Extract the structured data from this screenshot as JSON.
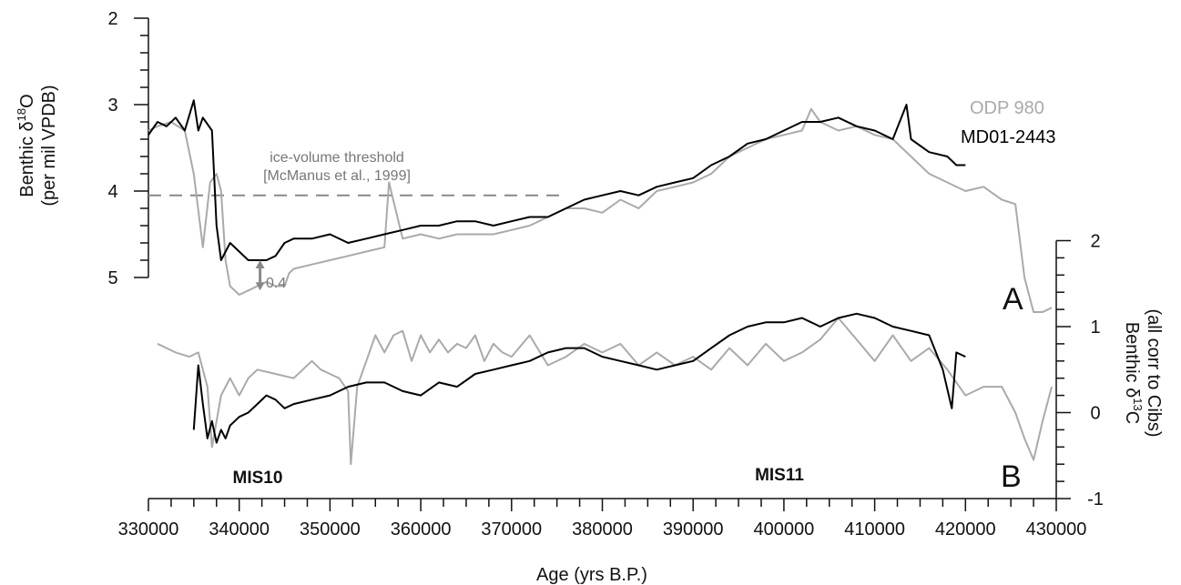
{
  "chart_data": {
    "type": "line",
    "x_axis": {
      "label": "Age (yrs B.P.)",
      "range": [
        330000,
        430000
      ],
      "ticks": [
        330000,
        340000,
        350000,
        360000,
        370000,
        380000,
        390000,
        400000,
        410000,
        420000,
        430000
      ]
    },
    "panels": [
      {
        "id": "A",
        "letter": "A",
        "y_axis": {
          "label_main": "Benthic δ",
          "label_sup": "18",
          "label_tail": "O",
          "label_line2": "(per mil VPDB)",
          "range": [
            2,
            5
          ],
          "inverted": true,
          "ticks": [
            2,
            3,
            4,
            5
          ],
          "side": "left"
        },
        "threshold": {
          "value": 4.05,
          "x_range": [
            330000,
            376000
          ],
          "label_line1": "ice-volume threshold",
          "label_line2": "[McManus et al., 1999]"
        },
        "annotation": {
          "text": "0.4",
          "x": 342300,
          "y_top": 4.8,
          "y_bottom": 5.15
        },
        "series": [
          {
            "name": "ODP 980",
            "color": "#aaaaaa",
            "x": [
              330000,
              331000,
              332500,
              334000,
              335000,
              336000,
              336800,
              337500,
              338000,
              338500,
              339000,
              340000,
              341000,
              342000,
              343000,
              344000,
              345000,
              345500,
              346000,
              348000,
              350000,
              352000,
              354000,
              356000,
              356500,
              358000,
              360000,
              362000,
              364000,
              366000,
              368000,
              370000,
              372000,
              374000,
              376000,
              378000,
              380000,
              382000,
              384000,
              386000,
              388000,
              390000,
              392000,
              394000,
              396000,
              398000,
              400000,
              402000,
              403000,
              404000,
              406000,
              408000,
              410000,
              412000,
              414000,
              416000,
              418000,
              420000,
              422000,
              424000,
              425500,
              426500,
              427500,
              428500,
              429500
            ],
            "y": [
              3.3,
              3.25,
              3.2,
              3.3,
              3.8,
              4.65,
              3.9,
              3.8,
              4.0,
              4.8,
              5.1,
              5.2,
              5.15,
              5.1,
              5.05,
              5.1,
              5.1,
              4.95,
              4.9,
              4.85,
              4.8,
              4.75,
              4.7,
              4.65,
              3.9,
              4.55,
              4.5,
              4.55,
              4.5,
              4.5,
              4.5,
              4.45,
              4.4,
              4.3,
              4.2,
              4.2,
              4.25,
              4.1,
              4.2,
              4.0,
              3.95,
              3.9,
              3.8,
              3.6,
              3.5,
              3.4,
              3.35,
              3.3,
              3.05,
              3.2,
              3.3,
              3.25,
              3.35,
              3.4,
              3.6,
              3.8,
              3.9,
              4.0,
              3.95,
              4.1,
              4.15,
              5.0,
              5.4,
              5.4,
              5.35
            ]
          },
          {
            "name": "MD01-2443",
            "color": "#000000",
            "x": [
              330000,
              331000,
              332000,
              333000,
              334000,
              335000,
              335500,
              336000,
              337000,
              337500,
              338000,
              339000,
              340000,
              341000,
              342000,
              343000,
              344000,
              345000,
              346000,
              348000,
              350000,
              352000,
              354000,
              356000,
              358000,
              360000,
              362000,
              364000,
              366000,
              368000,
              370000,
              372000,
              374000,
              376000,
              378000,
              380000,
              382000,
              384000,
              386000,
              388000,
              390000,
              392000,
              394000,
              396000,
              398000,
              400000,
              402000,
              404000,
              406000,
              408000,
              410000,
              412000,
              413500,
              414000,
              416000,
              418000,
              419000,
              420000
            ],
            "y": [
              3.35,
              3.2,
              3.25,
              3.15,
              3.3,
              2.95,
              3.3,
              3.15,
              3.3,
              4.4,
              4.8,
              4.6,
              4.7,
              4.8,
              4.8,
              4.8,
              4.75,
              4.6,
              4.55,
              4.55,
              4.5,
              4.6,
              4.55,
              4.5,
              4.45,
              4.4,
              4.4,
              4.35,
              4.35,
              4.4,
              4.35,
              4.3,
              4.3,
              4.2,
              4.1,
              4.05,
              4.0,
              4.05,
              3.95,
              3.9,
              3.85,
              3.7,
              3.6,
              3.45,
              3.4,
              3.3,
              3.2,
              3.2,
              3.15,
              3.25,
              3.3,
              3.4,
              3.0,
              3.4,
              3.55,
              3.6,
              3.7,
              3.7
            ]
          }
        ]
      },
      {
        "id": "B",
        "letter": "B",
        "y_axis": {
          "label_main": "Benthic δ",
          "label_sup": "13",
          "label_tail": "C",
          "label_line2": "(all corr to Cibs)",
          "range": [
            -1,
            2
          ],
          "inverted": false,
          "ticks": [
            -1,
            0,
            1,
            2
          ],
          "side": "right"
        },
        "stage_labels": [
          {
            "text": "MIS10",
            "x": 343500
          },
          {
            "text": "MIS11",
            "x": 399000
          }
        ],
        "series": [
          {
            "name": "ODP 980",
            "color": "#aaaaaa",
            "x": [
              331000,
              333000,
              334500,
              335500,
              336500,
              337000,
              338000,
              339000,
              340000,
              341000,
              342000,
              344000,
              346000,
              348000,
              349000,
              350000,
              351000,
              352000,
              352300,
              353000,
              354000,
              355000,
              356000,
              357000,
              358000,
              359000,
              360000,
              361000,
              362000,
              363000,
              364000,
              365000,
              366000,
              367000,
              368000,
              369000,
              370000,
              372000,
              374000,
              376000,
              378000,
              380000,
              382000,
              384000,
              386000,
              388000,
              390000,
              392000,
              394000,
              396000,
              398000,
              400000,
              402000,
              404000,
              406000,
              408000,
              410000,
              412000,
              414000,
              416000,
              418000,
              420000,
              422000,
              424000,
              425500,
              426500,
              427500,
              428500,
              429500
            ],
            "y": [
              0.8,
              0.7,
              0.65,
              0.7,
              0.3,
              -0.4,
              0.2,
              0.4,
              0.2,
              0.4,
              0.5,
              0.45,
              0.4,
              0.6,
              0.5,
              0.45,
              0.4,
              0.25,
              -0.6,
              0.3,
              0.6,
              0.9,
              0.7,
              0.9,
              0.95,
              0.6,
              0.9,
              0.7,
              0.85,
              0.7,
              0.8,
              0.75,
              0.9,
              0.6,
              0.8,
              0.7,
              0.65,
              0.9,
              0.55,
              0.65,
              0.8,
              0.7,
              0.8,
              0.55,
              0.7,
              0.55,
              0.65,
              0.5,
              0.75,
              0.55,
              0.8,
              0.6,
              0.7,
              0.85,
              1.1,
              0.85,
              0.6,
              0.9,
              0.6,
              0.75,
              0.5,
              0.2,
              0.3,
              0.3,
              0.0,
              -0.3,
              -0.55,
              -0.1,
              0.3
            ]
          },
          {
            "name": "MD01-2443",
            "color": "#000000",
            "x": [
              335000,
              335500,
              336000,
              336500,
              337000,
              337500,
              338000,
              338500,
              339000,
              340000,
              341000,
              342000,
              343000,
              344000,
              345000,
              346000,
              348000,
              350000,
              352000,
              354000,
              356000,
              358000,
              360000,
              362000,
              364000,
              366000,
              368000,
              370000,
              372000,
              374000,
              376000,
              378000,
              380000,
              382000,
              384000,
              386000,
              388000,
              390000,
              392000,
              394000,
              396000,
              398000,
              400000,
              402000,
              404000,
              406000,
              408000,
              410000,
              412000,
              414000,
              416000,
              417500,
              418500,
              419000,
              420000
            ],
            "y": [
              -0.2,
              0.55,
              0.1,
              -0.3,
              -0.1,
              -0.35,
              -0.2,
              -0.3,
              -0.15,
              -0.05,
              0.0,
              0.1,
              0.2,
              0.15,
              0.05,
              0.1,
              0.15,
              0.2,
              0.3,
              0.35,
              0.35,
              0.25,
              0.2,
              0.35,
              0.3,
              0.45,
              0.5,
              0.55,
              0.6,
              0.7,
              0.75,
              0.75,
              0.65,
              0.6,
              0.55,
              0.5,
              0.55,
              0.6,
              0.75,
              0.9,
              1.0,
              1.05,
              1.05,
              1.1,
              1.0,
              1.1,
              1.15,
              1.1,
              1.0,
              0.95,
              0.9,
              0.5,
              0.05,
              0.7,
              0.65
            ]
          }
        ]
      }
    ],
    "legend": [
      {
        "text": "ODP 980",
        "color": "#aaaaaa"
      },
      {
        "text": "MD01-2443",
        "color": "#000000"
      }
    ]
  }
}
